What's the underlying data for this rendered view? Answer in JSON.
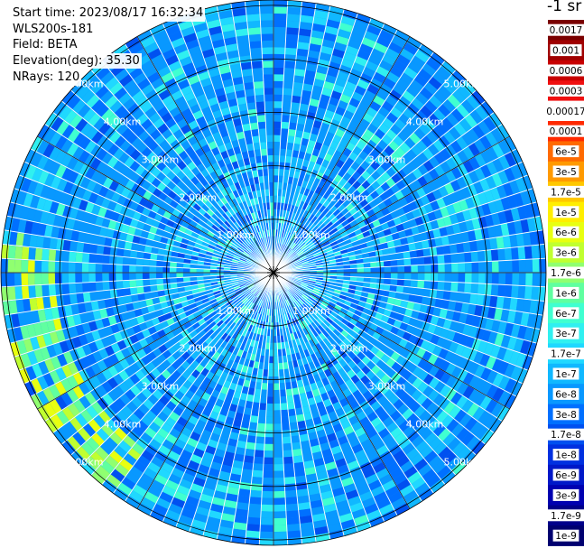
{
  "header": {
    "start_time": "Start time: 2023/08/17 16:32:34",
    "instrument": "WLS200s-181",
    "field": "Field: BETA",
    "elevation": "Elevation(deg): 35.30",
    "nrays": "NRays: 120"
  },
  "colorbar": {
    "unit_label": "-1 sr",
    "ticks": [
      "0.0017",
      "0.001",
      "0.0006",
      "0.0003",
      "0.00017",
      "0.0001",
      "6e-5",
      "3e-5",
      "1.7e-5",
      "1e-5",
      "6e-6",
      "3e-6",
      "1.7e-6",
      "1e-6",
      "6e-7",
      "3e-7",
      "1.7e-7",
      "1e-7",
      "6e-8",
      "3e-8",
      "1.7e-8",
      "1e-8",
      "6e-9",
      "3e-9",
      "1.7e-9",
      "1e-9"
    ],
    "colors": [
      "#7a0000",
      "#a00000",
      "#c80000",
      "#f01010",
      "#ffffff",
      "#ff2a00",
      "#ff6a00",
      "#ff9a00",
      "#ffc800",
      "#ffee00",
      "#e8ff10",
      "#c0ff30",
      "#90ff70",
      "#60ffa0",
      "#40ffd0",
      "#30f0f0",
      "#20d8ff",
      "#10b8ff",
      "#0898ff",
      "#0070ff",
      "#0050f0",
      "#0030e0",
      "#0018c8",
      "#0000b0",
      "#00008a",
      "#000070"
    ]
  },
  "chart_data": {
    "type": "heatmap",
    "projection": "polar plan position indicator",
    "field": "BETA",
    "nrays": 120,
    "range_ring_labels": [
      "1.00km",
      "2.00km",
      "3.00km",
      "4.00km",
      "5.00km"
    ],
    "range_rings_km": [
      1,
      2,
      3,
      4,
      5
    ],
    "max_range_km": 5.1,
    "grid": true
  }
}
